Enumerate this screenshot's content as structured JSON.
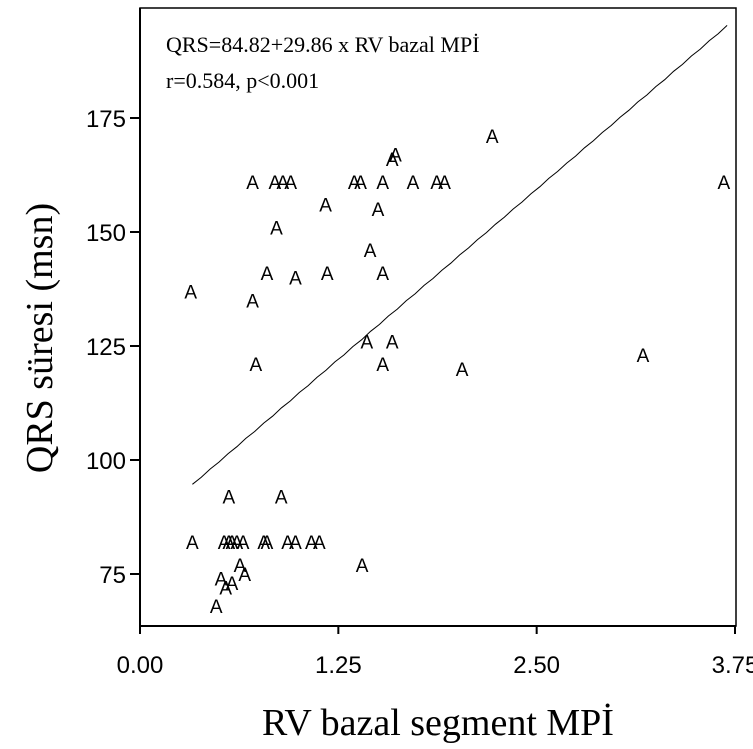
{
  "chart_data": {
    "type": "scatter",
    "marker": "A",
    "xlabel": "RV bazal segment MPİ",
    "ylabel": "QRS süresi (msn)",
    "xlim": [
      0,
      3.75
    ],
    "ylim": [
      63,
      198
    ],
    "xticks": [
      "0.00",
      "1.25",
      "2.50",
      "3.75"
    ],
    "xtick_values": [
      0,
      1.25,
      2.5,
      3.75
    ],
    "yticks": [
      "75",
      "100",
      "125",
      "150",
      "175"
    ],
    "ytick_values": [
      75,
      100,
      125,
      150,
      175
    ],
    "annotation": {
      "equation": "QRS=84.82+29.86 x RV bazal MPİ",
      "stats": "r=0.584, p<0.001"
    },
    "fit_line": {
      "intercept": 84.82,
      "slope": 29.86,
      "x_range": [
        0.33,
        3.7
      ]
    },
    "points": [
      {
        "x": 0.33,
        "y": 82
      },
      {
        "x": 0.53,
        "y": 82
      },
      {
        "x": 0.56,
        "y": 82
      },
      {
        "x": 0.58,
        "y": 82
      },
      {
        "x": 0.61,
        "y": 82
      },
      {
        "x": 0.65,
        "y": 82
      },
      {
        "x": 0.78,
        "y": 82
      },
      {
        "x": 0.8,
        "y": 82
      },
      {
        "x": 0.93,
        "y": 82
      },
      {
        "x": 0.98,
        "y": 82
      },
      {
        "x": 1.08,
        "y": 82
      },
      {
        "x": 1.13,
        "y": 82
      },
      {
        "x": 0.56,
        "y": 92
      },
      {
        "x": 0.89,
        "y": 92
      },
      {
        "x": 0.51,
        "y": 74
      },
      {
        "x": 0.66,
        "y": 75
      },
      {
        "x": 0.63,
        "y": 77
      },
      {
        "x": 0.58,
        "y": 73
      },
      {
        "x": 0.54,
        "y": 72
      },
      {
        "x": 0.48,
        "y": 68
      },
      {
        "x": 1.4,
        "y": 77
      },
      {
        "x": 0.32,
        "y": 137
      },
      {
        "x": 0.71,
        "y": 135
      },
      {
        "x": 0.73,
        "y": 121
      },
      {
        "x": 0.8,
        "y": 141
      },
      {
        "x": 0.98,
        "y": 140
      },
      {
        "x": 1.18,
        "y": 141
      },
      {
        "x": 1.53,
        "y": 141
      },
      {
        "x": 0.86,
        "y": 151
      },
      {
        "x": 1.17,
        "y": 156
      },
      {
        "x": 1.45,
        "y": 146
      },
      {
        "x": 1.5,
        "y": 155
      },
      {
        "x": 1.43,
        "y": 126
      },
      {
        "x": 1.59,
        "y": 126
      },
      {
        "x": 1.53,
        "y": 121
      },
      {
        "x": 2.03,
        "y": 120
      },
      {
        "x": 3.17,
        "y": 123
      },
      {
        "x": 3.68,
        "y": 161
      },
      {
        "x": 2.22,
        "y": 171
      },
      {
        "x": 0.71,
        "y": 161
      },
      {
        "x": 0.85,
        "y": 161
      },
      {
        "x": 0.9,
        "y": 161
      },
      {
        "x": 0.95,
        "y": 161
      },
      {
        "x": 1.35,
        "y": 161
      },
      {
        "x": 1.39,
        "y": 161
      },
      {
        "x": 1.53,
        "y": 161
      },
      {
        "x": 1.72,
        "y": 161
      },
      {
        "x": 1.87,
        "y": 161
      },
      {
        "x": 1.92,
        "y": 161
      },
      {
        "x": 1.59,
        "y": 166
      },
      {
        "x": 1.61,
        "y": 167
      }
    ]
  }
}
